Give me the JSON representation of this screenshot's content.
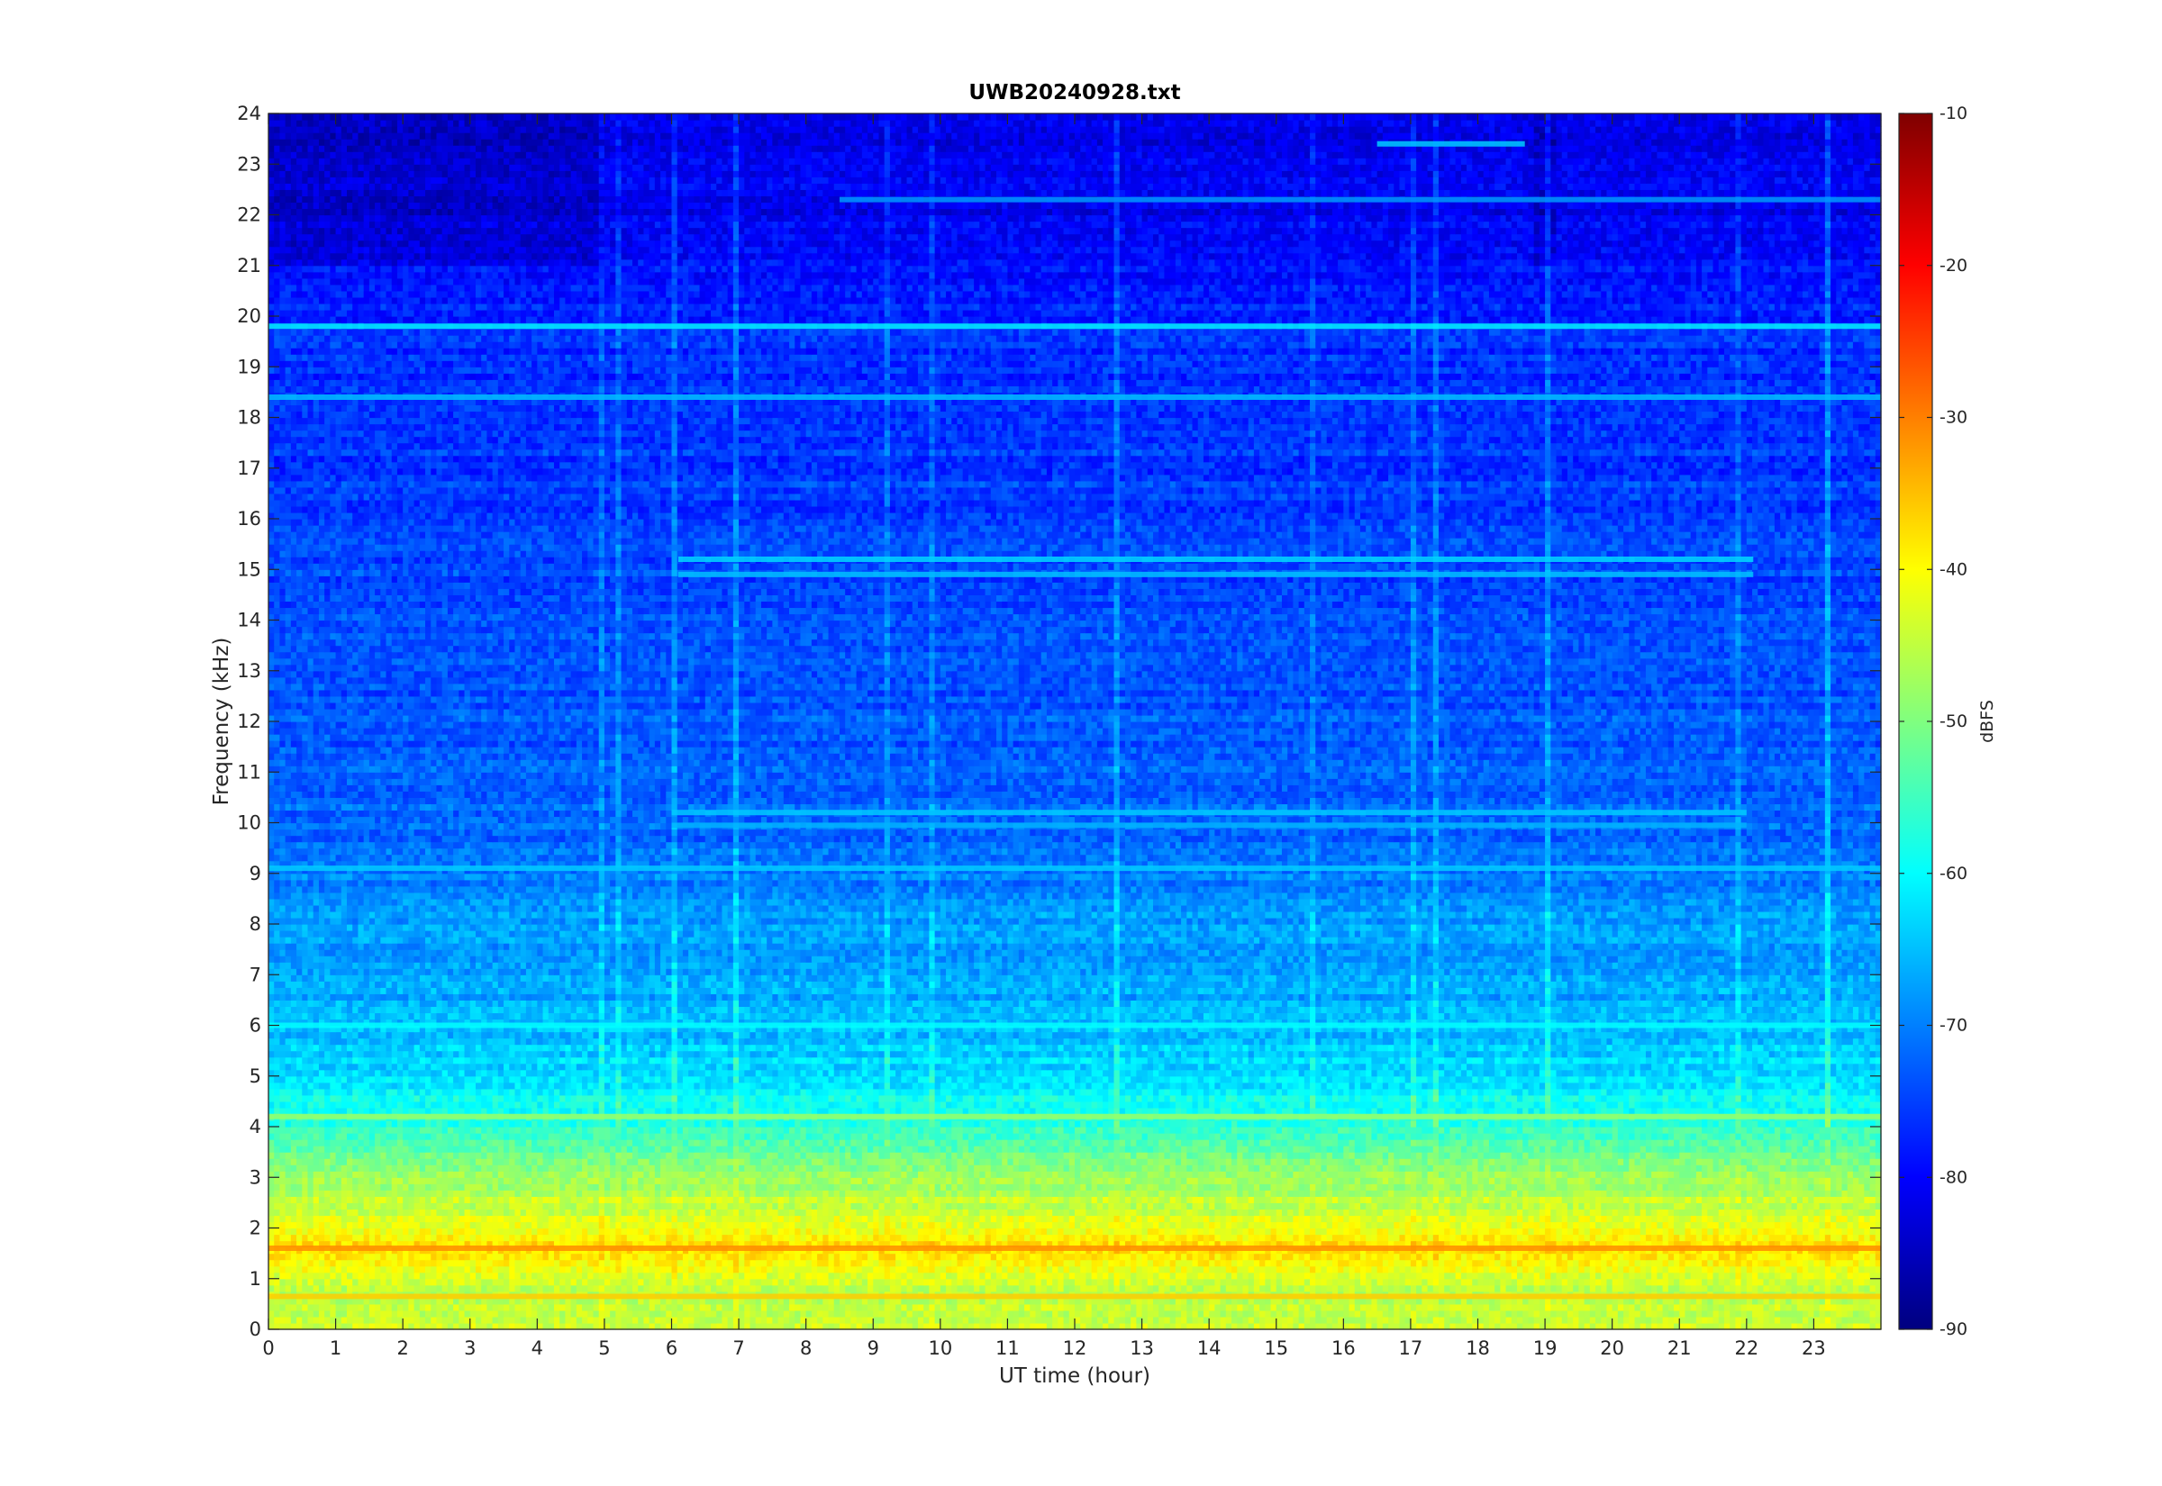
{
  "chart_data": {
    "type": "heatmap",
    "title": "UWB20240928.txt",
    "xlabel": "UT time (hour)",
    "ylabel": "Frequency (kHz)",
    "xlim": [
      0,
      24
    ],
    "ylim": [
      0,
      24
    ],
    "x_ticks": [
      0,
      1,
      2,
      3,
      4,
      5,
      6,
      7,
      8,
      9,
      10,
      11,
      12,
      13,
      14,
      15,
      16,
      17,
      18,
      19,
      20,
      21,
      22,
      23
    ],
    "y_ticks": [
      0,
      1,
      2,
      3,
      4,
      5,
      6,
      7,
      8,
      9,
      10,
      11,
      12,
      13,
      14,
      15,
      16,
      17,
      18,
      19,
      20,
      21,
      22,
      23,
      24
    ],
    "colorbar": {
      "label": "dBFS",
      "colormap": "jet",
      "clim": [
        -90,
        -10
      ],
      "ticks": [
        -90,
        -80,
        -70,
        -60,
        -50,
        -40,
        -30,
        -20,
        -10
      ]
    },
    "background_profile": [
      {
        "freq_khz": 0.0,
        "dbfs": -44
      },
      {
        "freq_khz": 0.5,
        "dbfs": -45
      },
      {
        "freq_khz": 1.0,
        "dbfs": -43
      },
      {
        "freq_khz": 1.6,
        "dbfs": -37
      },
      {
        "freq_khz": 2.0,
        "dbfs": -41
      },
      {
        "freq_khz": 2.5,
        "dbfs": -45
      },
      {
        "freq_khz": 3.0,
        "dbfs": -47
      },
      {
        "freq_khz": 3.5,
        "dbfs": -52
      },
      {
        "freq_khz": 4.0,
        "dbfs": -56
      },
      {
        "freq_khz": 4.5,
        "dbfs": -59
      },
      {
        "freq_khz": 5.0,
        "dbfs": -62
      },
      {
        "freq_khz": 6.0,
        "dbfs": -66
      },
      {
        "freq_khz": 7.0,
        "dbfs": -67
      },
      {
        "freq_khz": 8.0,
        "dbfs": -68
      },
      {
        "freq_khz": 9.0,
        "dbfs": -70
      },
      {
        "freq_khz": 10.0,
        "dbfs": -72
      },
      {
        "freq_khz": 12.0,
        "dbfs": -73
      },
      {
        "freq_khz": 14.0,
        "dbfs": -74
      },
      {
        "freq_khz": 16.0,
        "dbfs": -75
      },
      {
        "freq_khz": 18.0,
        "dbfs": -76
      },
      {
        "freq_khz": 20.0,
        "dbfs": -77
      },
      {
        "freq_khz": 21.0,
        "dbfs": -79
      },
      {
        "freq_khz": 22.0,
        "dbfs": -81
      },
      {
        "freq_khz": 24.0,
        "dbfs": -82
      }
    ],
    "lines": [
      {
        "freq_khz": 19.8,
        "dbfs": -61,
        "t_start": 0,
        "t_end": 24
      },
      {
        "freq_khz": 18.4,
        "dbfs": -65,
        "t_start": 0,
        "t_end": 24
      },
      {
        "freq_khz": 23.4,
        "dbfs": -64,
        "t_start": 16.5,
        "t_end": 18.7
      },
      {
        "freq_khz": 22.3,
        "dbfs": -68,
        "t_start": 8.5,
        "t_end": 24
      },
      {
        "freq_khz": 15.2,
        "dbfs": -63,
        "t_start": 6.1,
        "t_end": 22.1
      },
      {
        "freq_khz": 14.9,
        "dbfs": -65,
        "t_start": 6.1,
        "t_end": 22.1
      },
      {
        "freq_khz": 10.2,
        "dbfs": -64,
        "t_start": 6.0,
        "t_end": 22.0
      },
      {
        "freq_khz": 9.95,
        "dbfs": -66,
        "t_start": 6.0,
        "t_end": 22.0
      },
      {
        "freq_khz": 9.1,
        "dbfs": -64,
        "t_start": 0,
        "t_end": 24
      },
      {
        "freq_khz": 6.0,
        "dbfs": -60,
        "t_start": 0,
        "t_end": 24
      },
      {
        "freq_khz": 4.2,
        "dbfs": -48,
        "t_start": 0,
        "t_end": 24
      },
      {
        "freq_khz": 1.6,
        "dbfs": -31,
        "t_start": 0,
        "t_end": 24
      },
      {
        "freq_khz": 0.65,
        "dbfs": -36,
        "t_start": 0,
        "t_end": 24
      }
    ]
  }
}
